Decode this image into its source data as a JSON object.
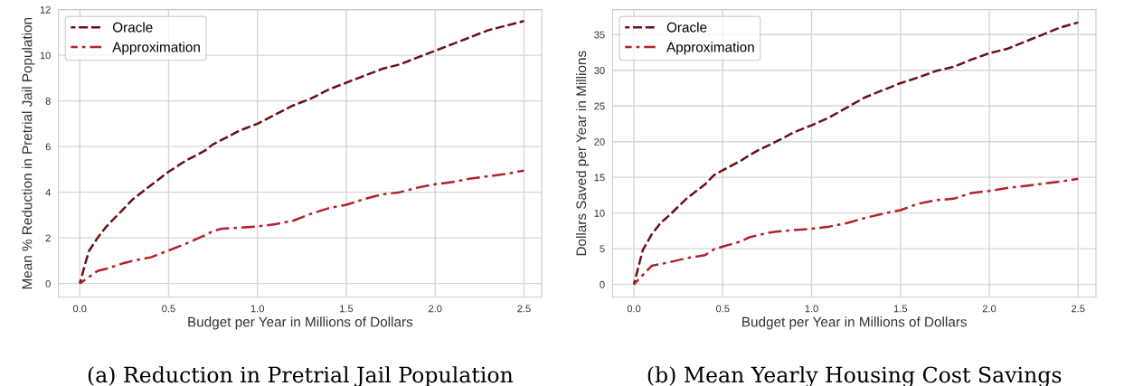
{
  "chart_data": [
    {
      "type": "line",
      "title": "(a) Reduction in Pretrial Jail Population",
      "xlabel": "Budget per Year in Millions of Dollars",
      "ylabel": "Mean % Reduction in Pretrial Jail Population",
      "xlim": [
        -0.12,
        2.6
      ],
      "xticks": [
        {
          "value": 0,
          "label": "0.0"
        },
        0.5,
        {
          "value": 1,
          "label": "1.0"
        },
        1.5,
        {
          "value": 2,
          "label": "2.0"
        },
        2.5
      ],
      "ylim": [
        -0.6,
        12
      ],
      "yticks": [
        0,
        2,
        4,
        6,
        8,
        10,
        12
      ],
      "grid": true,
      "legend": "top left",
      "series": [
        {
          "name": "Oracle",
          "color": "#6b0f1a",
          "line_style": "dashed",
          "x": [
            0,
            0.05,
            0.1,
            0.15,
            0.25,
            0.3,
            0.4,
            0.5,
            0.6,
            0.7,
            0.75,
            0.8,
            0.9,
            1.0,
            1.05,
            1.1,
            1.2,
            1.3,
            1.4,
            1.5,
            1.6,
            1.7,
            1.8,
            1.9,
            2.0,
            2.1,
            2.2,
            2.3,
            2.4,
            2.5
          ],
          "values": [
            0,
            1.4,
            2.0,
            2.5,
            3.3,
            3.7,
            4.3,
            4.9,
            5.4,
            5.8,
            6.1,
            6.3,
            6.7,
            7.0,
            7.2,
            7.4,
            7.8,
            8.1,
            8.5,
            8.8,
            9.1,
            9.4,
            9.6,
            9.9,
            10.2,
            10.5,
            10.8,
            11.1,
            11.3,
            11.5
          ]
        },
        {
          "name": "Approximation",
          "color": "#b5202a",
          "line_style": "dashdot",
          "x": [
            0,
            0.1,
            0.15,
            0.25,
            0.3,
            0.4,
            0.5,
            0.6,
            0.7,
            0.75,
            0.8,
            0.9,
            1.0,
            1.1,
            1.2,
            1.3,
            1.4,
            1.5,
            1.6,
            1.7,
            1.8,
            1.9,
            2.0,
            2.1,
            2.2,
            2.3,
            2.4,
            2.5
          ],
          "values": [
            0,
            0.55,
            0.65,
            0.9,
            1.0,
            1.15,
            1.45,
            1.75,
            2.1,
            2.3,
            2.4,
            2.45,
            2.5,
            2.6,
            2.75,
            3.05,
            3.3,
            3.45,
            3.7,
            3.9,
            4.0,
            4.2,
            4.35,
            4.45,
            4.6,
            4.7,
            4.8,
            4.95
          ]
        }
      ]
    },
    {
      "type": "line",
      "title": "(b) Mean Yearly Housing Cost Savings",
      "xlabel": "Budget per Year in Millions of Dollars",
      "ylabel": "Dollars Saved per Year in Millions",
      "xlim": [
        -0.12,
        2.6
      ],
      "xticks": [
        {
          "value": 0,
          "label": "0.0"
        },
        0.5,
        {
          "value": 1,
          "label": "1.0"
        },
        1.5,
        {
          "value": 2,
          "label": "2.0"
        },
        2.5
      ],
      "ylim": [
        -1.8,
        38.5
      ],
      "yticks": [
        0,
        5,
        10,
        15,
        20,
        25,
        30,
        35
      ],
      "grid": true,
      "legend": "top left",
      "series": [
        {
          "name": "Oracle",
          "color": "#6b0f1a",
          "line_style": "dashed",
          "x": [
            0,
            0.05,
            0.1,
            0.15,
            0.2,
            0.3,
            0.4,
            0.45,
            0.5,
            0.6,
            0.65,
            0.7,
            0.8,
            0.9,
            1.0,
            1.1,
            1.2,
            1.3,
            1.4,
            1.5,
            1.6,
            1.7,
            1.8,
            1.9,
            2.0,
            2.1,
            2.2,
            2.3,
            2.4,
            2.5
          ],
          "values": [
            0,
            4.8,
            7.0,
            8.6,
            9.7,
            12.1,
            14.0,
            15.3,
            16.0,
            17.3,
            18.1,
            18.8,
            20.0,
            21.3,
            22.3,
            23.4,
            24.8,
            26.2,
            27.2,
            28.2,
            29.0,
            29.9,
            30.5,
            31.5,
            32.4,
            33.0,
            34.0,
            35.0,
            36.0,
            36.7
          ]
        },
        {
          "name": "Approximation",
          "color": "#b5202a",
          "line_style": "dashdot",
          "x": [
            0,
            0.1,
            0.2,
            0.3,
            0.4,
            0.45,
            0.5,
            0.6,
            0.65,
            0.75,
            0.8,
            0.9,
            1.0,
            1.1,
            1.2,
            1.3,
            1.4,
            1.5,
            1.6,
            1.7,
            1.8,
            1.9,
            2.0,
            2.1,
            2.2,
            2.3,
            2.4,
            2.5
          ],
          "values": [
            0,
            2.6,
            3.1,
            3.7,
            4.1,
            4.9,
            5.3,
            6.0,
            6.6,
            7.2,
            7.4,
            7.6,
            7.8,
            8.1,
            8.6,
            9.3,
            9.9,
            10.4,
            11.3,
            11.8,
            12.0,
            12.8,
            13.1,
            13.5,
            13.8,
            14.1,
            14.4,
            14.8
          ]
        }
      ]
    }
  ]
}
